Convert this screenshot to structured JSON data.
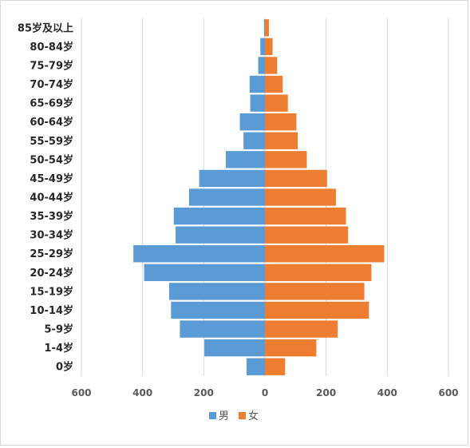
{
  "chart_data": {
    "type": "bar",
    "orientation": "horizontal",
    "layout": "population-pyramid",
    "categories": [
      "85岁及以上",
      "80-84岁",
      "75-79岁",
      "70-74岁",
      "65-69岁",
      "60-64岁",
      "55-59岁",
      "50-54岁",
      "45-49岁",
      "40-44岁",
      "35-39岁",
      "30-34岁",
      "25-29岁",
      "20-24岁",
      "15-19岁",
      "10-14岁",
      "5-9岁",
      "1-4岁",
      "0岁"
    ],
    "series": [
      {
        "name": "男",
        "color": "#5b9bd5",
        "side": "left",
        "values": [
          3,
          15,
          22,
          50,
          48,
          82,
          70,
          128,
          215,
          248,
          298,
          292,
          430,
          395,
          313,
          307,
          278,
          198,
          60
        ]
      },
      {
        "name": "女",
        "color": "#ed7d31",
        "side": "right",
        "values": [
          13,
          25,
          40,
          58,
          75,
          103,
          107,
          137,
          203,
          232,
          265,
          272,
          390,
          348,
          325,
          340,
          238,
          168,
          66
        ]
      }
    ],
    "xlim": [
      -600,
      600
    ],
    "xticks": [
      "600",
      "400",
      "200",
      "0",
      "200",
      "400",
      "600"
    ],
    "grid": true,
    "legend": "bottom"
  }
}
